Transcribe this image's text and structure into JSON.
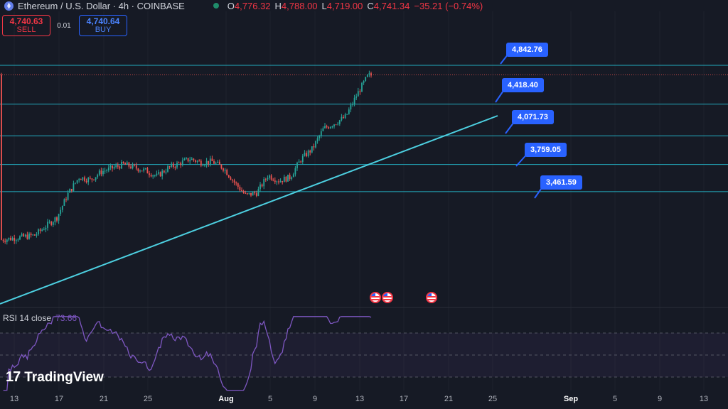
{
  "header": {
    "symbol": "Ethereum / U.S. Dollar · 4h · COINBASE",
    "ohlc": [
      {
        "k": "O",
        "v": "4,776.32"
      },
      {
        "k": "H",
        "v": "4,788.00"
      },
      {
        "k": "L",
        "v": "4,719.00"
      },
      {
        "k": "C",
        "v": "4,741.34"
      }
    ],
    "change": "−35.21 (−0.74%)"
  },
  "trade": {
    "sell_price": "4,740.63",
    "sell_label": "SELL",
    "spread": "0.01",
    "buy_price": "4,740.64",
    "buy_label": "BUY"
  },
  "indicator": {
    "label": "RSI 14 close",
    "value": "73.66"
  },
  "branding": {
    "logo_mark": "17",
    "logo_text": "TradingView"
  },
  "x_axis_labels": [
    "13",
    "17",
    "21",
    "25",
    "Aug",
    "5",
    "9",
    "13",
    "17",
    "21",
    "25",
    "Sep",
    "5",
    "9",
    "13"
  ],
  "level_labels": [
    "4,842.76",
    "4,418.40",
    "4,071.73",
    "3,759.05",
    "3,461.59"
  ],
  "colors": {
    "up": "#26a69a",
    "down": "#ef5350",
    "level": "#26c6da",
    "trend": "#4dd0e1",
    "rsi": "#7e57c2",
    "label_bg": "#2962ff"
  },
  "chart_data": {
    "type": "candlestick",
    "symbol": "ETH/USD",
    "timeframe": "4h",
    "horizontal_levels": [
      4842.76,
      4418.4,
      4071.73,
      3759.05,
      3461.59
    ],
    "close_path": [
      [
        "Jul 11",
        2935
      ],
      [
        "Jul 14",
        2985
      ],
      [
        "Jul 16",
        3180
      ],
      [
        "Jul 17",
        3440
      ],
      [
        "Jul 18",
        3620
      ],
      [
        "Jul 19",
        3590
      ],
      [
        "Jul 20",
        3680
      ],
      [
        "Jul 22",
        3760
      ],
      [
        "Jul 24",
        3690
      ],
      [
        "Jul 25",
        3630
      ],
      [
        "Jul 26",
        3720
      ],
      [
        "Jul 28",
        3820
      ],
      [
        "Jul 29",
        3780
      ],
      [
        "Jul 30",
        3790
      ],
      [
        "Jul 31",
        3720
      ],
      [
        "Aug 1",
        3560
      ],
      [
        "Aug 2",
        3420
      ],
      [
        "Aug 3",
        3450
      ],
      [
        "Aug 4",
        3640
      ],
      [
        "Aug 5",
        3580
      ],
      [
        "Aug 6",
        3620
      ],
      [
        "Aug 7",
        3820
      ],
      [
        "Aug 8",
        3930
      ],
      [
        "Aug 9",
        4150
      ],
      [
        "Aug 10",
        4210
      ],
      [
        "Aug 11",
        4280
      ],
      [
        "Aug 12",
        4520
      ],
      [
        "Aug 13",
        4730
      ],
      [
        "Aug 14",
        4741
      ]
    ],
    "rsi": {
      "period": 14,
      "last": 73.66
    }
  }
}
